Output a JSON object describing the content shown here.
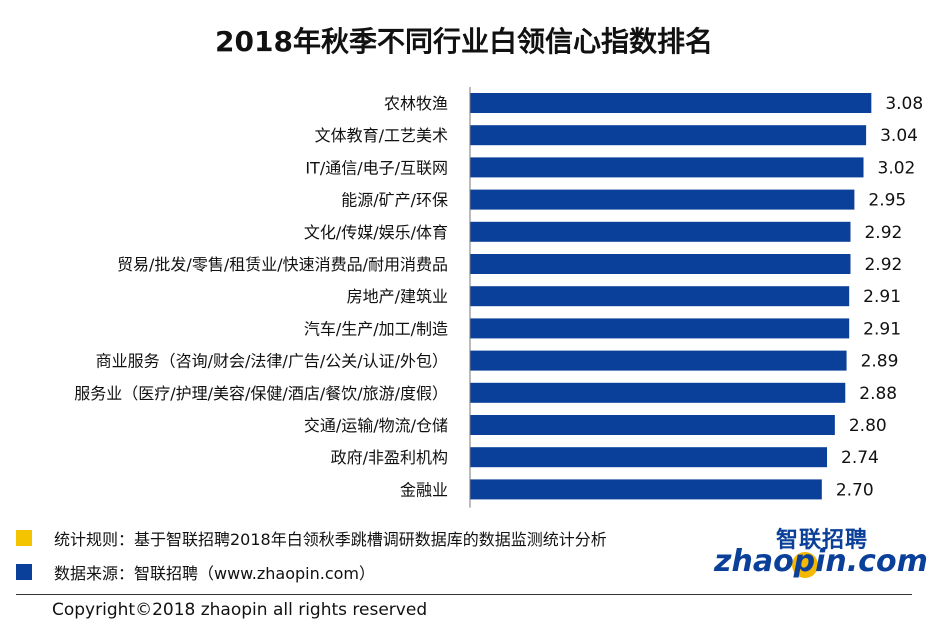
{
  "title": "2018年秋季不同行业白领信心指数排名",
  "chart_data": {
    "type": "bar",
    "orientation": "horizontal",
    "categories": [
      "农林牧渔",
      "文体教育/工艺美术",
      "IT/通信/电子/互联网",
      "能源/矿产/环保",
      "文化/传媒/娱乐/体育",
      "贸易/批发/零售/租赁业/快速消费品/耐用消费品",
      "房地产/建筑业",
      "汽车/生产/加工/制造",
      "商业服务（咨询/财会/法律/广告/公关/认证/外包）",
      "服务业（医疗/护理/美容/保健/酒店/餐饮/旅游/度假）",
      "交通/运输/物流/仓储",
      "政府/非盈利机构",
      "金融业"
    ],
    "value_labels": [
      "3.08",
      "3.04",
      "3.02",
      "2.95",
      "2.92",
      "2.92",
      "2.91",
      "2.91",
      "2.89",
      "2.88",
      "2.80",
      "2.74",
      "2.70"
    ],
    "values": [
      3.08,
      3.04,
      3.02,
      2.95,
      2.92,
      2.92,
      2.91,
      2.91,
      2.89,
      2.88,
      2.8,
      2.74,
      2.7
    ],
    "xlim": [
      0,
      3.3
    ],
    "grid": false,
    "bar_color": "#0a4099"
  },
  "notes": [
    {
      "text": "统计规则：基于智联招聘2018年白领秋季跳槽调研数据库的数据监测统计分析",
      "color": "#f5c400"
    },
    {
      "text": "数据来源：智联招聘（www.zhaopin.com）",
      "color": "#0a4099"
    }
  ],
  "logo": {
    "cn": "智联招聘",
    "en": "zhaopin.com"
  },
  "copyright": "Copyright©2018 zhaopin all rights reserved"
}
